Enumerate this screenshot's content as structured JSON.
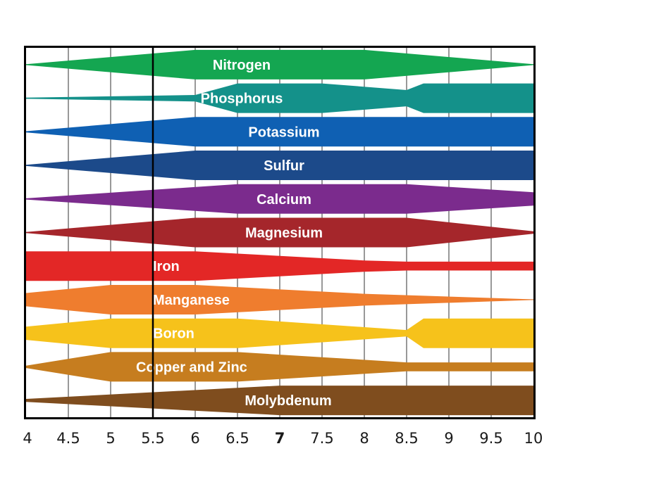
{
  "chart_data": {
    "type": "area",
    "title": "",
    "xlabel": "",
    "ylabel": "",
    "xlim": [
      4,
      10
    ],
    "grid": true,
    "x_ticks": [
      {
        "value": 4,
        "label": "4"
      },
      {
        "value": 4.5,
        "label": "4.5"
      },
      {
        "value": 5,
        "label": "5"
      },
      {
        "value": 5.5,
        "label": "5.5"
      },
      {
        "value": 6,
        "label": "6"
      },
      {
        "value": 6.5,
        "label": "6.5"
      },
      {
        "value": 7,
        "label": "7",
        "bold": true
      },
      {
        "value": 7.5,
        "label": "7.5"
      },
      {
        "value": 8,
        "label": "8"
      },
      {
        "value": 8.5,
        "label": "8.5"
      },
      {
        "value": 9,
        "label": "9"
      },
      {
        "value": 9.5,
        "label": "9.5"
      },
      {
        "value": 10,
        "label": "10"
      }
    ],
    "reference_line_x": 5.5,
    "series": [
      {
        "name": "Nitrogen",
        "color": "#14a651",
        "label_at": 6.55,
        "width": [
          [
            4,
            0.03
          ],
          [
            6,
            1
          ],
          [
            8,
            1
          ],
          [
            10,
            0.03
          ]
        ]
      },
      {
        "name": "Phosphorus",
        "color": "#14918a",
        "label_at": 6.55,
        "width": [
          [
            4,
            0.04
          ],
          [
            6,
            0.22
          ],
          [
            6.5,
            1
          ],
          [
            7.5,
            1
          ],
          [
            8.5,
            0.55
          ],
          [
            8.7,
            1
          ],
          [
            10,
            1
          ]
        ]
      },
      {
        "name": "Potassium",
        "color": "#0f60b3",
        "label_at": 7.05,
        "width": [
          [
            4,
            0.04
          ],
          [
            6,
            1
          ],
          [
            10,
            1
          ]
        ]
      },
      {
        "name": "Sulfur",
        "color": "#1c4a8a",
        "label_at": 7.05,
        "width": [
          [
            4,
            0.04
          ],
          [
            6,
            1
          ],
          [
            10,
            1
          ]
        ]
      },
      {
        "name": "Calcium",
        "color": "#7b2b8d",
        "label_at": 7.05,
        "width": [
          [
            4,
            0.04
          ],
          [
            6.5,
            1
          ],
          [
            8.5,
            1
          ],
          [
            10,
            0.45
          ]
        ]
      },
      {
        "name": "Magnesium",
        "color": "#a5262b",
        "label_at": 7.05,
        "width": [
          [
            4,
            0.04
          ],
          [
            6,
            1
          ],
          [
            8.5,
            1
          ],
          [
            10,
            0.08
          ]
        ]
      },
      {
        "name": "Iron",
        "color": "#e32726",
        "label_at": 5.55,
        "width": [
          [
            4,
            1
          ],
          [
            6,
            1
          ],
          [
            8,
            0.38
          ],
          [
            8.5,
            0.3
          ],
          [
            10,
            0.3
          ]
        ]
      },
      {
        "name": "Manganese",
        "color": "#ef7d2e",
        "label_at": 5.55,
        "width": [
          [
            4,
            0.45
          ],
          [
            5,
            1
          ],
          [
            6,
            1
          ],
          [
            8,
            0.4
          ],
          [
            10,
            0.02
          ]
        ]
      },
      {
        "name": "Boron",
        "color": "#f6c21b",
        "label_at": 5.55,
        "width": [
          [
            4,
            0.45
          ],
          [
            5,
            1
          ],
          [
            6.5,
            1
          ],
          [
            8.5,
            0.22
          ],
          [
            8.7,
            1
          ],
          [
            10,
            1
          ]
        ]
      },
      {
        "name": "Copper and Zinc",
        "color": "#c67d1f",
        "label_at": 5.35,
        "width": [
          [
            4,
            0.08
          ],
          [
            5,
            1
          ],
          [
            6.5,
            1
          ],
          [
            8.5,
            0.3
          ],
          [
            10,
            0.3
          ]
        ]
      },
      {
        "name": "Molybdenum",
        "color": "#7f4d1e",
        "label_at": 7.1,
        "width": [
          [
            4,
            0.1
          ],
          [
            7,
            1
          ],
          [
            10,
            1
          ]
        ]
      }
    ]
  }
}
